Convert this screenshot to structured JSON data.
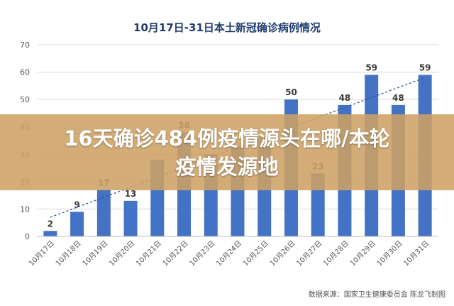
{
  "banner": {
    "line1": "16天确诊484例疫情源头在哪/本轮",
    "line2": "疫情发源地"
  },
  "source_text": "数据来源：国家卫生健康委员会    陈龙飞制图",
  "chart_data": {
    "type": "bar",
    "title": "10月17日-31日本土新冠确诊病例情况",
    "categories": [
      "10月17日",
      "10月18日",
      "10月19日",
      "10月20日",
      "10月21日",
      "10月22日",
      "10月23日",
      "10月24日",
      "10月25日",
      "10月26日",
      "10月27日",
      "10月28日",
      "10月29日",
      "10月30日",
      "10月31日"
    ],
    "series": [
      {
        "values": [
          2,
          9,
          17,
          13,
          28,
          38,
          30,
          33,
          36,
          50,
          23,
          48,
          59,
          48,
          59
        ],
        "color": "#4472c4"
      }
    ],
    "data_labels": [
      "2",
      "9",
      "17",
      "13",
      "",
      "38",
      "",
      "",
      "",
      "50",
      "23",
      "48",
      "59",
      "48",
      "59"
    ],
    "yticks": [
      "0",
      "10",
      "20",
      "30",
      "40",
      "50",
      "60",
      "70"
    ],
    "ylim": [
      0,
      70
    ],
    "trendline": {
      "style": "dashed",
      "from": [
        1,
        7
      ],
      "to": [
        15,
        58
      ]
    },
    "grid": true,
    "legend": "none"
  }
}
